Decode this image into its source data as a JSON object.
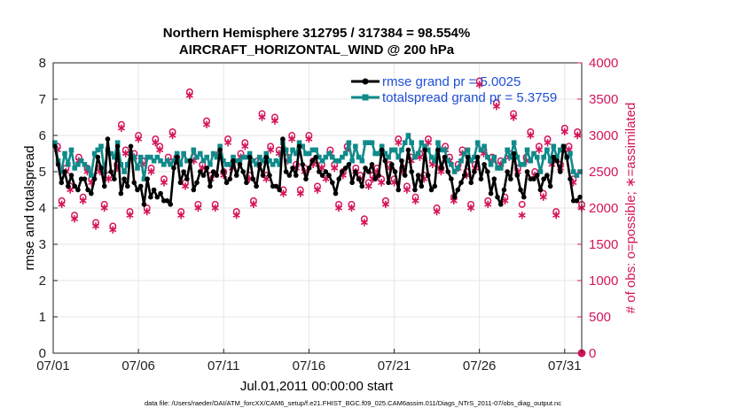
{
  "chart_data": {
    "type": "line",
    "title_line1": "Northern Hemisphere 312795 / 317384 = 98.554%",
    "title_line2": "AIRCRAFT_HORIZONTAL_WIND @ 200 hPa",
    "xlabel": "Jul.01,2011 00:00:00 start",
    "ylabel_left": "rmse and totalspread",
    "ylabel_right": "# of obs: o=possible; ∗=assimilated",
    "footnote": "data file: /Users/raeder/DAI/ATM_forcXX/CAM6_setup/f.e21.FHIST_BGC.f09_025.CAM6assim.011/Diags_NTrS_2011-07/obs_diag_output.nc",
    "x_range_days": [
      0,
      31
    ],
    "ylim_left": [
      0,
      8
    ],
    "ylim_right": [
      0,
      4000
    ],
    "x_ticks": [
      {
        "day": 0,
        "label": "07/01"
      },
      {
        "day": 5,
        "label": "07/06"
      },
      {
        "day": 10,
        "label": "07/11"
      },
      {
        "day": 15,
        "label": "07/16"
      },
      {
        "day": 20,
        "label": "07/21"
      },
      {
        "day": 25,
        "label": "07/26"
      },
      {
        "day": 30,
        "label": "07/31"
      }
    ],
    "y_ticks_left": [
      "0",
      "1",
      "2",
      "3",
      "4",
      "5",
      "6",
      "7",
      "8"
    ],
    "y_ticks_right": [
      "0",
      "500",
      "1000",
      "1500",
      "2000",
      "2500",
      "3000",
      "3500",
      "4000"
    ],
    "colors": {
      "rmse": "#000000",
      "spread": "#108a8a",
      "obs": "#d4145a",
      "legend_text": "#1f4fd8",
      "grid": "#e6e6e6"
    },
    "series": [
      {
        "name": "rmse grand pr = 5.0025",
        "key": "rmse",
        "values": [
          5.7,
          5.2,
          4.7,
          5.0,
          4.6,
          4.9,
          4.6,
          4.5,
          4.8,
          4.8,
          4.5,
          4.4,
          4.8,
          5.4,
          5.1,
          4.6,
          5.9,
          5.0,
          4.8,
          5.7,
          4.4,
          4.8,
          4.6,
          5.7,
          4.7,
          4.5,
          4.6,
          4.1,
          4.8,
          4.3,
          4.5,
          4.3,
          4.4,
          4.2,
          4.2,
          4.1,
          5.1,
          5.4,
          4.7,
          5.0,
          4.8,
          5.3,
          4.5,
          4.7,
          5.0,
          4.9,
          5.1,
          4.6,
          5.0,
          4.9,
          5.6,
          5.0,
          4.7,
          4.8,
          5.3,
          4.9,
          5.2,
          5.0,
          4.7,
          5.4,
          4.8,
          4.6,
          5.2,
          4.9,
          5.4,
          4.9,
          4.6,
          4.6,
          4.5,
          5.9,
          5.0,
          4.9,
          5.1,
          4.9,
          5.7,
          5.2,
          4.8,
          5.1,
          5.3,
          5.4,
          5.0,
          4.9,
          5.0,
          4.9,
          4.7,
          4.4,
          4.8,
          5.0,
          5.1,
          5.2,
          4.7,
          5.0,
          4.8,
          4.6,
          5.1,
          5.0,
          5.2,
          4.8,
          4.9,
          5.6,
          5.3,
          4.7,
          5.2,
          5.0,
          4.5,
          5.3,
          4.9,
          5.6,
          5.0,
          4.5,
          4.9,
          4.6,
          5.6,
          4.9,
          4.5,
          4.6,
          5.6,
          5.1,
          5.4,
          5.0,
          4.8,
          4.3,
          4.5,
          4.7,
          4.9,
          5.4,
          4.7,
          5.0,
          5.4,
          4.8,
          5.2,
          5.0,
          4.4,
          4.8,
          4.3,
          4.1,
          4.5,
          5.0,
          4.8,
          5.5,
          4.9,
          4.5,
          4.3,
          5.0,
          4.8,
          4.8,
          4.9,
          4.5,
          4.8,
          4.9,
          4.6,
          5.4,
          5.3,
          5.0,
          5.7,
          5.4,
          4.8,
          4.2,
          4.2,
          4.3
        ]
      },
      {
        "name": "totalspread grand pr = 5.3759",
        "key": "spread",
        "values": [
          5.8,
          5.3,
          5.0,
          5.5,
          5.2,
          5.6,
          5.1,
          5.2,
          5.3,
          5.2,
          5.1,
          4.9,
          5.5,
          5.6,
          5.7,
          5.0,
          5.6,
          5.5,
          5.4,
          5.8,
          5.2,
          5.0,
          5.2,
          5.5,
          5.4,
          5.1,
          5.4,
          4.8,
          5.4,
          5.4,
          5.3,
          5.4,
          5.3,
          5.2,
          5.3,
          5.2,
          5.3,
          5.5,
          5.2,
          5.5,
          5.3,
          5.3,
          5.6,
          5.4,
          5.5,
          5.3,
          5.4,
          5.2,
          5.5,
          5.4,
          5.7,
          5.3,
          5.2,
          5.2,
          5.4,
          5.3,
          5.3,
          5.4,
          5.4,
          5.5,
          5.3,
          5.2,
          5.4,
          5.3,
          5.5,
          5.3,
          5.2,
          5.3,
          5.2,
          5.8,
          5.6,
          5.3,
          5.6,
          5.5,
          5.8,
          5.7,
          5.5,
          5.5,
          5.6,
          5.6,
          5.4,
          5.3,
          5.4,
          5.5,
          5.4,
          5.3,
          5.3,
          5.4,
          5.5,
          5.8,
          5.3,
          5.7,
          5.4,
          5.3,
          5.8,
          5.8,
          5.8,
          5.5,
          5.5,
          5.7,
          5.5,
          5.4,
          5.6,
          5.6,
          5.4,
          5.6,
          5.8,
          6.0,
          5.8,
          5.4,
          5.5,
          5.8,
          5.7,
          5.6,
          5.4,
          5.3,
          5.8,
          5.6,
          5.6,
          5.3,
          5.2,
          5.0,
          5.1,
          5.3,
          5.5,
          5.6,
          5.3,
          5.4,
          5.8,
          5.6,
          5.7,
          5.4,
          5.2,
          5.4,
          5.1,
          5.1,
          5.3,
          5.6,
          5.4,
          5.8,
          5.4,
          5.2,
          5.2,
          5.6,
          5.3,
          5.5,
          5.4,
          5.0,
          5.4,
          5.6,
          5.3,
          5.7,
          5.4,
          5.6,
          5.7,
          5.4,
          5.5,
          5.0,
          4.9,
          5.0
        ]
      }
    ],
    "obs_counts": [
      {
        "day": 0.25,
        "possible": 2850,
        "assimilated": 2800
      },
      {
        "day": 0.5,
        "possible": 2100,
        "assimilated": 2050
      },
      {
        "day": 0.75,
        "possible": 2550,
        "assimilated": 2500
      },
      {
        "day": 1.0,
        "possible": 2300,
        "assimilated": 2250
      },
      {
        "day": 1.25,
        "possible": 1900,
        "assimilated": 1850
      },
      {
        "day": 1.5,
        "possible": 2700,
        "assimilated": 2650
      },
      {
        "day": 1.75,
        "possible": 2150,
        "assimilated": 2100
      },
      {
        "day": 2.0,
        "possible": 2550,
        "assimilated": 2500
      },
      {
        "day": 2.25,
        "possible": 2400,
        "assimilated": 2350
      },
      {
        "day": 2.5,
        "possible": 1800,
        "assimilated": 1750
      },
      {
        "day": 2.75,
        "possible": 2550,
        "assimilated": 2500
      },
      {
        "day": 3.0,
        "possible": 2050,
        "assimilated": 2000
      },
      {
        "day": 3.25,
        "possible": 2450,
        "assimilated": 2400
      },
      {
        "day": 3.5,
        "possible": 1750,
        "assimilated": 1700
      },
      {
        "day": 3.75,
        "possible": 2600,
        "assimilated": 2550
      },
      {
        "day": 4.0,
        "possible": 3150,
        "assimilated": 3100
      },
      {
        "day": 4.25,
        "possible": 2800,
        "assimilated": 2750
      },
      {
        "day": 4.5,
        "possible": 1950,
        "assimilated": 1900
      },
      {
        "day": 4.75,
        "possible": 2750,
        "assimilated": 2700
      },
      {
        "day": 5.0,
        "possible": 3000,
        "assimilated": 2950
      },
      {
        "day": 5.25,
        "possible": 2650,
        "assimilated": 2600
      },
      {
        "day": 5.5,
        "possible": 2000,
        "assimilated": 1950
      },
      {
        "day": 5.75,
        "possible": 2550,
        "assimilated": 2500
      },
      {
        "day": 6.0,
        "possible": 2950,
        "assimilated": 2900
      },
      {
        "day": 6.25,
        "possible": 2850,
        "assimilated": 2800
      },
      {
        "day": 6.5,
        "possible": 2400,
        "assimilated": 2350
      },
      {
        "day": 6.75,
        "possible": 2700,
        "assimilated": 2650
      },
      {
        "day": 7.0,
        "possible": 3050,
        "assimilated": 3000
      },
      {
        "day": 7.25,
        "possible": 2700,
        "assimilated": 2650
      },
      {
        "day": 7.5,
        "possible": 1950,
        "assimilated": 1900
      },
      {
        "day": 7.75,
        "possible": 2350,
        "assimilated": 2300
      },
      {
        "day": 8.0,
        "possible": 3600,
        "assimilated": 3550
      },
      {
        "day": 8.25,
        "possible": 2700,
        "assimilated": 2650
      },
      {
        "day": 8.5,
        "possible": 2050,
        "assimilated": 2000
      },
      {
        "day": 8.75,
        "possible": 2600,
        "assimilated": 2550
      },
      {
        "day": 9.0,
        "possible": 3200,
        "assimilated": 3150
      },
      {
        "day": 9.25,
        "possible": 2450,
        "assimilated": 2400
      },
      {
        "day": 9.5,
        "possible": 2050,
        "assimilated": 2000
      },
      {
        "day": 9.75,
        "possible": 2750,
        "assimilated": 2700
      },
      {
        "day": 10.0,
        "possible": 2500,
        "assimilated": 2450
      },
      {
        "day": 10.25,
        "possible": 2950,
        "assimilated": 2900
      },
      {
        "day": 10.5,
        "possible": 2600,
        "assimilated": 2550
      },
      {
        "day": 10.75,
        "possible": 1950,
        "assimilated": 1900
      },
      {
        "day": 11.0,
        "possible": 2750,
        "assimilated": 2700
      },
      {
        "day": 11.25,
        "possible": 2900,
        "assimilated": 2850
      },
      {
        "day": 11.5,
        "possible": 2450,
        "assimilated": 2400
      },
      {
        "day": 11.75,
        "possible": 2100,
        "assimilated": 2050
      },
      {
        "day": 12.0,
        "possible": 2650,
        "assimilated": 2600
      },
      {
        "day": 12.25,
        "possible": 3300,
        "assimilated": 3250
      },
      {
        "day": 12.5,
        "possible": 2450,
        "assimilated": 2400
      },
      {
        "day": 12.75,
        "possible": 2850,
        "assimilated": 2800
      },
      {
        "day": 13.0,
        "possible": 3250,
        "assimilated": 3200
      },
      {
        "day": 13.25,
        "possible": 2800,
        "assimilated": 2750
      },
      {
        "day": 13.5,
        "possible": 2250,
        "assimilated": 2200
      },
      {
        "day": 13.75,
        "possible": 2700,
        "assimilated": 2650
      },
      {
        "day": 14.0,
        "possible": 3000,
        "assimilated": 2950
      },
      {
        "day": 14.25,
        "possible": 2600,
        "assimilated": 2550
      },
      {
        "day": 14.5,
        "possible": 2250,
        "assimilated": 2200
      },
      {
        "day": 14.75,
        "possible": 2550,
        "assimilated": 2500
      },
      {
        "day": 15.0,
        "possible": 3000,
        "assimilated": 2950
      },
      {
        "day": 15.25,
        "possible": 2650,
        "assimilated": 2600
      },
      {
        "day": 15.5,
        "possible": 2300,
        "assimilated": 2250
      },
      {
        "day": 15.75,
        "possible": 2600,
        "assimilated": 2550
      },
      {
        "day": 16.0,
        "possible": 2450,
        "assimilated": 2400
      },
      {
        "day": 16.25,
        "possible": 2800,
        "assimilated": 2750
      },
      {
        "day": 16.5,
        "possible": 2600,
        "assimilated": 2550
      },
      {
        "day": 16.75,
        "possible": 2050,
        "assimilated": 2000
      },
      {
        "day": 17.0,
        "possible": 2500,
        "assimilated": 2450
      },
      {
        "day": 17.25,
        "possible": 2850,
        "assimilated": 2800
      },
      {
        "day": 17.5,
        "possible": 2050,
        "assimilated": 2000
      },
      {
        "day": 17.75,
        "possible": 2550,
        "assimilated": 2500
      },
      {
        "day": 18.0,
        "possible": 2450,
        "assimilated": 2400
      },
      {
        "day": 18.25,
        "possible": 1850,
        "assimilated": 1800
      },
      {
        "day": 18.5,
        "possible": 2350,
        "assimilated": 2300
      },
      {
        "day": 18.75,
        "possible": 2450,
        "assimilated": 2400
      },
      {
        "day": 19.0,
        "possible": 2550,
        "assimilated": 2500
      },
      {
        "day": 19.25,
        "possible": 2400,
        "assimilated": 2350
      },
      {
        "day": 19.5,
        "possible": 2100,
        "assimilated": 2050
      },
      {
        "day": 19.75,
        "possible": 2600,
        "assimilated": 2550
      },
      {
        "day": 20.0,
        "possible": 2400,
        "assimilated": 2350
      },
      {
        "day": 20.25,
        "possible": 2950,
        "assimilated": 2900
      },
      {
        "day": 20.5,
        "possible": 2550,
        "assimilated": 2500
      },
      {
        "day": 20.75,
        "possible": 2300,
        "assimilated": 2250
      },
      {
        "day": 21.0,
        "possible": 2700,
        "assimilated": 2650
      },
      {
        "day": 21.25,
        "possible": 2150,
        "assimilated": 2100
      },
      {
        "day": 21.5,
        "possible": 2750,
        "assimilated": 2700
      },
      {
        "day": 21.75,
        "possible": 2450,
        "assimilated": 2400
      },
      {
        "day": 22.0,
        "possible": 2950,
        "assimilated": 2900
      },
      {
        "day": 22.25,
        "possible": 2650,
        "assimilated": 2600
      },
      {
        "day": 22.5,
        "possible": 2000,
        "assimilated": 1950
      },
      {
        "day": 22.75,
        "possible": 2550,
        "assimilated": 2500
      },
      {
        "day": 23.0,
        "possible": 2850,
        "assimilated": 2800
      },
      {
        "day": 23.25,
        "possible": 2700,
        "assimilated": 2650
      },
      {
        "day": 23.5,
        "possible": 2150,
        "assimilated": 2100
      },
      {
        "day": 23.75,
        "possible": 2600,
        "assimilated": 2550
      },
      {
        "day": 24.0,
        "possible": 2800,
        "assimilated": 2750
      },
      {
        "day": 24.25,
        "possible": 2500,
        "assimilated": 2450
      },
      {
        "day": 24.5,
        "possible": 2050,
        "assimilated": 2000
      },
      {
        "day": 24.75,
        "possible": 2600,
        "assimilated": 2550
      },
      {
        "day": 25.0,
        "possible": 3750,
        "assimilated": 3700
      },
      {
        "day": 25.25,
        "possible": 2800,
        "assimilated": 2750
      },
      {
        "day": 25.5,
        "possible": 2100,
        "assimilated": 2050
      },
      {
        "day": 25.75,
        "possible": 2700,
        "assimilated": 2650
      },
      {
        "day": 26.0,
        "possible": 3450,
        "assimilated": 3400
      },
      {
        "day": 26.25,
        "possible": 2650,
        "assimilated": 2600
      },
      {
        "day": 26.5,
        "possible": 2150,
        "assimilated": 2100
      },
      {
        "day": 26.75,
        "possible": 2750,
        "assimilated": 2700
      },
      {
        "day": 27.0,
        "possible": 3300,
        "assimilated": 3250
      },
      {
        "day": 27.25,
        "possible": 2550,
        "assimilated": 2500
      },
      {
        "day": 27.5,
        "possible": 2050,
        "assimilated": 1900
      },
      {
        "day": 27.75,
        "possible": 2700,
        "assimilated": 2650
      },
      {
        "day": 28.0,
        "possible": 3050,
        "assimilated": 3000
      },
      {
        "day": 28.25,
        "possible": 2500,
        "assimilated": 2450
      },
      {
        "day": 28.5,
        "possible": 2850,
        "assimilated": 2800
      },
      {
        "day": 28.75,
        "possible": 2200,
        "assimilated": 2150
      },
      {
        "day": 29.0,
        "possible": 2950,
        "assimilated": 2900
      },
      {
        "day": 29.25,
        "possible": 2650,
        "assimilated": 2600
      },
      {
        "day": 29.5,
        "possible": 1950,
        "assimilated": 1900
      },
      {
        "day": 29.75,
        "possible": 2600,
        "assimilated": 2550
      },
      {
        "day": 30.0,
        "possible": 3100,
        "assimilated": 3050
      },
      {
        "day": 30.25,
        "possible": 2850,
        "assimilated": 2800
      },
      {
        "day": 30.5,
        "possible": 2400,
        "assimilated": 2350
      },
      {
        "day": 30.75,
        "possible": 3050,
        "assimilated": 3000
      },
      {
        "day": 31.0,
        "possible": 2050,
        "assimilated": 2000
      }
    ],
    "end_marker": {
      "day": 31,
      "possible": 0,
      "assimilated": 0
    }
  }
}
